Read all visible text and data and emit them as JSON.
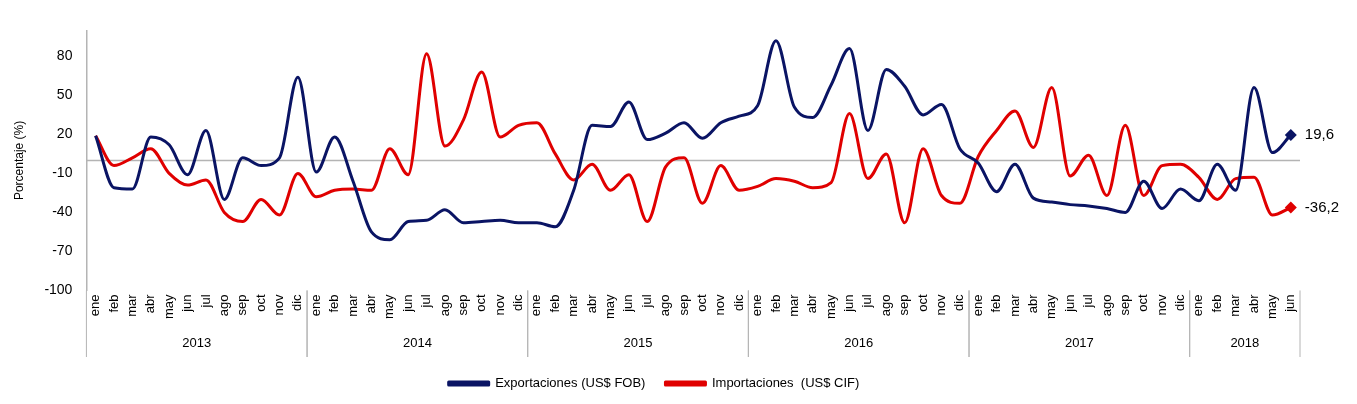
{
  "chart_data": {
    "type": "line",
    "ylabel": "Porcentaje (%)",
    "categories": [
      "ene",
      "feb",
      "mar",
      "abr",
      "may",
      "jun",
      "jul",
      "ago",
      "sep",
      "oct",
      "nov",
      "dic",
      "ene",
      "feb",
      "mar",
      "abr",
      "may",
      "jun",
      "jul",
      "ago",
      "sep",
      "oct",
      "nov",
      "dic",
      "ene",
      "feb",
      "mar",
      "abr",
      "may",
      "jun",
      "jul",
      "ago",
      "sep",
      "oct",
      "nov",
      "dic",
      "ene",
      "feb",
      "mar",
      "abr",
      "may",
      "jun",
      "jul",
      "ago",
      "sep",
      "oct",
      "nov",
      "dic",
      "ene",
      "feb",
      "mar",
      "abr",
      "may",
      "jun",
      "jul",
      "ago",
      "sep",
      "oct",
      "nov",
      "dic",
      "ene",
      "feb",
      "mar",
      "abr",
      "may",
      "jun"
    ],
    "annotations": [
      "2013",
      "2014",
      "2015",
      "2016",
      "2017",
      "2018"
    ],
    "series": [
      {
        "name": "Exportaciones (US$ FOB)",
        "color": "#0a1464",
        "values": [
          19,
          -21,
          -22,
          18,
          12,
          -11,
          23,
          -30,
          2,
          -4,
          2,
          64,
          -9,
          18,
          -16,
          -55,
          -61,
          -47,
          -46,
          -38,
          -48,
          -47,
          -46,
          -48,
          -48,
          -51,
          -23,
          27,
          26,
          45,
          16,
          21,
          29,
          17,
          29,
          34,
          42,
          92,
          41,
          33,
          58,
          86,
          23,
          70,
          57,
          35,
          43,
          9,
          -2,
          -24,
          -3,
          -29,
          -32,
          -34,
          -35,
          -37,
          -40,
          -16,
          -37,
          -22,
          -31,
          -3,
          -23,
          56,
          6,
          19.6
        ],
        "value_labels": [
          null,
          null,
          null,
          null,
          null,
          null,
          null,
          null,
          null,
          null,
          null,
          null,
          null,
          null,
          null,
          null,
          null,
          null,
          null,
          null,
          null,
          null,
          null,
          null,
          null,
          null,
          null,
          null,
          null,
          null,
          null,
          null,
          null,
          null,
          null,
          null,
          null,
          null,
          null,
          null,
          null,
          null,
          null,
          null,
          null,
          null,
          null,
          null,
          null,
          null,
          null,
          null,
          null,
          null,
          null,
          null,
          null,
          null,
          null,
          null,
          null,
          null,
          null,
          null,
          null,
          "19,6"
        ]
      },
      {
        "name": "Importaciones  (US$ CIF)",
        "color": "#e00000",
        "values": [
          19,
          -4,
          2,
          9,
          -10,
          -19,
          -15,
          -40,
          -47,
          -30,
          -42,
          -10,
          -28,
          -23,
          -22,
          -23,
          9,
          -11,
          82,
          11,
          31,
          68,
          18,
          27,
          29,
          5,
          -15,
          -3,
          -23,
          -11,
          -47,
          -5,
          2,
          -33,
          -4,
          -23,
          -20,
          -14,
          -16,
          -21,
          -17,
          36,
          -14,
          5,
          -48,
          9,
          -27,
          -33,
          3,
          23,
          38,
          10,
          56,
          -12,
          4,
          -27,
          27,
          -27,
          -4,
          -3,
          -13,
          -30,
          -14,
          -13,
          -42,
          -36.2
        ],
        "value_labels": [
          null,
          null,
          null,
          null,
          null,
          null,
          null,
          null,
          null,
          null,
          null,
          null,
          null,
          null,
          null,
          null,
          null,
          null,
          null,
          null,
          null,
          null,
          null,
          null,
          null,
          null,
          null,
          null,
          null,
          null,
          null,
          null,
          null,
          null,
          null,
          null,
          null,
          null,
          null,
          null,
          null,
          null,
          null,
          null,
          null,
          null,
          null,
          null,
          null,
          null,
          null,
          null,
          null,
          null,
          null,
          null,
          null,
          null,
          null,
          null,
          null,
          null,
          null,
          null,
          null,
          "-36,2"
        ]
      }
    ],
    "ylim": [
      -100,
      100
    ],
    "yticks": [
      -100,
      -70,
      -40,
      -10,
      20,
      50,
      80
    ],
    "ref_lines": [
      {
        "axis": "y",
        "value": 0,
        "color": "#b4b4b4"
      }
    ],
    "grid": false,
    "legend": "bottom"
  }
}
